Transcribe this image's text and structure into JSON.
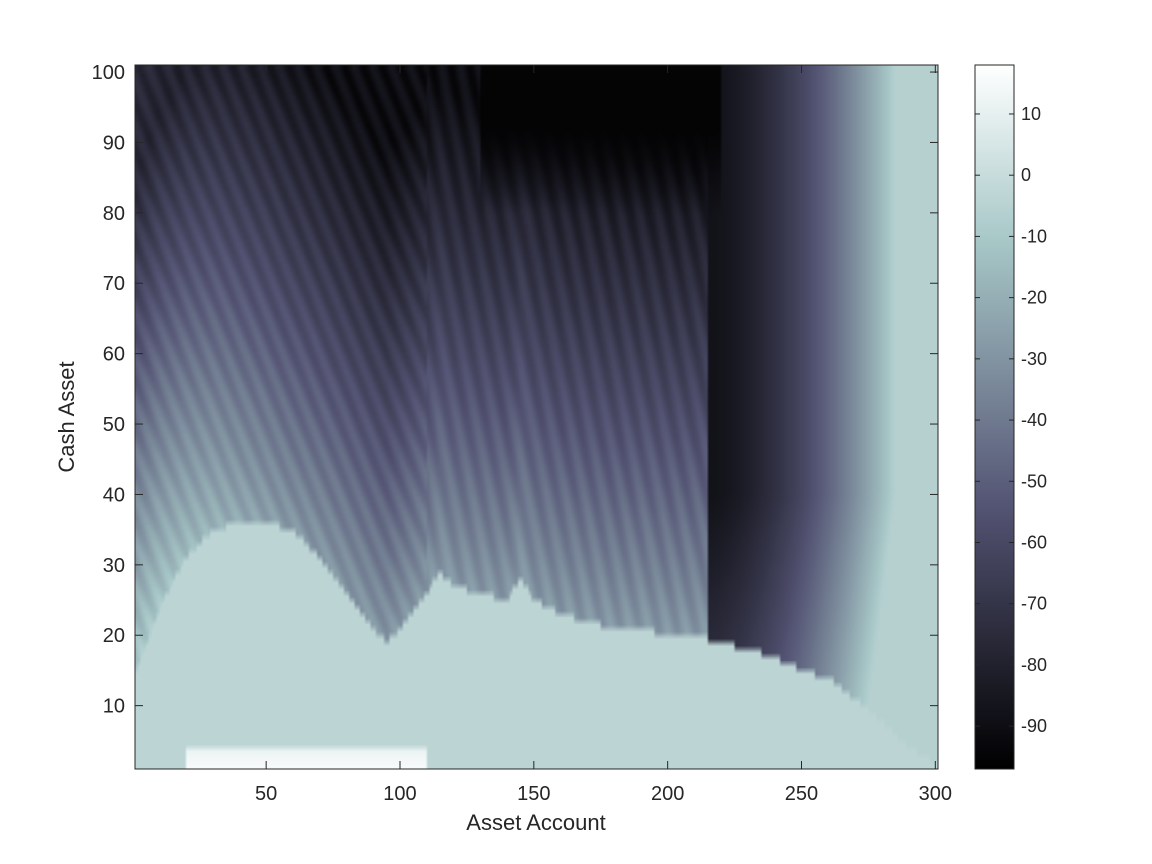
{
  "chart_data": {
    "type": "heatmap",
    "title": "",
    "xlabel": "Asset Account",
    "ylabel": "Cash Asset",
    "xlim": [
      1,
      301
    ],
    "ylim": [
      1,
      101
    ],
    "x_ticks": [
      50,
      100,
      150,
      200,
      250,
      300
    ],
    "y_ticks": [
      10,
      20,
      30,
      40,
      50,
      60,
      70,
      80,
      90,
      100
    ],
    "colorbar": {
      "min": -97,
      "max": 18,
      "ticks": [
        10,
        0,
        -10,
        -20,
        -30,
        -40,
        -50,
        -60,
        -70,
        -80,
        -90
      ],
      "colormap": "bone",
      "stops": [
        {
          "t": 0.0,
          "color": "#000000"
        },
        {
          "t": 0.375,
          "color": "#545474"
        },
        {
          "t": 0.75,
          "color": "#a7c7c7"
        },
        {
          "t": 1.0,
          "color": "#ffffff"
        }
      ]
    },
    "region_boundary": [
      {
        "x": 1,
        "y": 14
      },
      {
        "x": 10,
        "y": 24
      },
      {
        "x": 20,
        "y": 31
      },
      {
        "x": 30,
        "y": 35
      },
      {
        "x": 40,
        "y": 36
      },
      {
        "x": 50,
        "y": 36
      },
      {
        "x": 60,
        "y": 35
      },
      {
        "x": 70,
        "y": 31
      },
      {
        "x": 80,
        "y": 26
      },
      {
        "x": 90,
        "y": 21
      },
      {
        "x": 95,
        "y": 19
      },
      {
        "x": 100,
        "y": 21
      },
      {
        "x": 110,
        "y": 26
      },
      {
        "x": 115,
        "y": 29
      },
      {
        "x": 120,
        "y": 27
      },
      {
        "x": 130,
        "y": 26
      },
      {
        "x": 140,
        "y": 25
      },
      {
        "x": 145,
        "y": 28
      },
      {
        "x": 150,
        "y": 25
      },
      {
        "x": 160,
        "y": 23
      },
      {
        "x": 170,
        "y": 22
      },
      {
        "x": 180,
        "y": 21
      },
      {
        "x": 190,
        "y": 21
      },
      {
        "x": 200,
        "y": 20
      },
      {
        "x": 210,
        "y": 20
      },
      {
        "x": 220,
        "y": 19
      },
      {
        "x": 230,
        "y": 18
      },
      {
        "x": 240,
        "y": 17
      },
      {
        "x": 250,
        "y": 15
      },
      {
        "x": 260,
        "y": 14
      },
      {
        "x": 270,
        "y": 11
      },
      {
        "x": 280,
        "y": 8
      },
      {
        "x": 290,
        "y": 4
      },
      {
        "x": 301,
        "y": 2
      }
    ],
    "region_value": -4,
    "right_edge_value": -6,
    "dark_core": {
      "x": [
        170,
        215
      ],
      "y": [
        85,
        101
      ],
      "value": -95
    },
    "white_patch": {
      "x": [
        20,
        110
      ],
      "y": [
        1,
        4
      ],
      "value": 16
    },
    "legend": "none",
    "grid": false
  }
}
